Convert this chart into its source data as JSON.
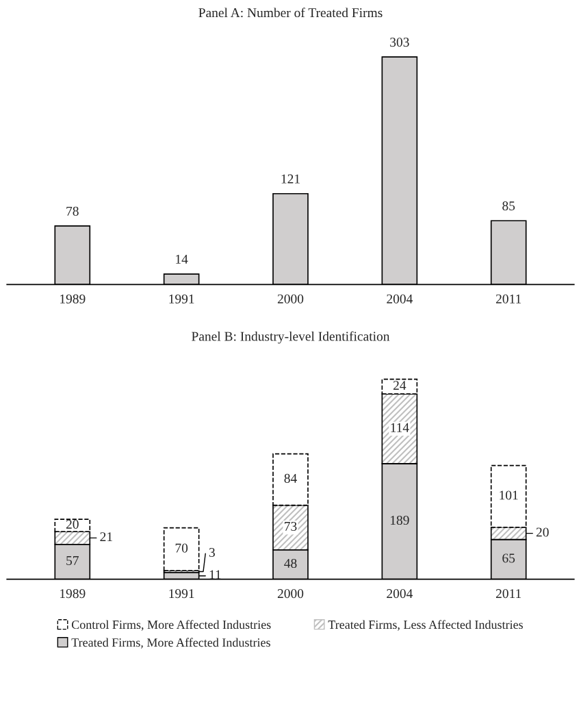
{
  "chart_data": [
    {
      "type": "bar",
      "title": "Panel A: Number of Treated Firms",
      "categories": [
        "1989",
        "1991",
        "2000",
        "2004",
        "2011"
      ],
      "values": [
        78,
        14,
        121,
        303,
        85
      ],
      "color": "#d0cece",
      "data_labels": true,
      "grid": false
    },
    {
      "type": "bar",
      "title": "Panel B: Industry-level Identification",
      "categories": [
        "1989",
        "1991",
        "2000",
        "2004",
        "2011"
      ],
      "stacked": true,
      "data_labels": true,
      "grid": false,
      "legend": "bottom",
      "series": [
        {
          "name": "Treated Firms, More Affected Industries",
          "color": "#d0cece",
          "values": [
            57,
            11,
            48,
            189,
            65
          ]
        },
        {
          "name": "Treated Firms, Less Affected Industries",
          "color": "#bfbfbf",
          "values": [
            21,
            3,
            73,
            114,
            20
          ]
        },
        {
          "name": "Control Firms, More Affected Industries",
          "color": "#ffffff",
          "line_style": "dashed",
          "values": [
            20,
            70,
            84,
            24,
            101
          ]
        }
      ]
    }
  ]
}
